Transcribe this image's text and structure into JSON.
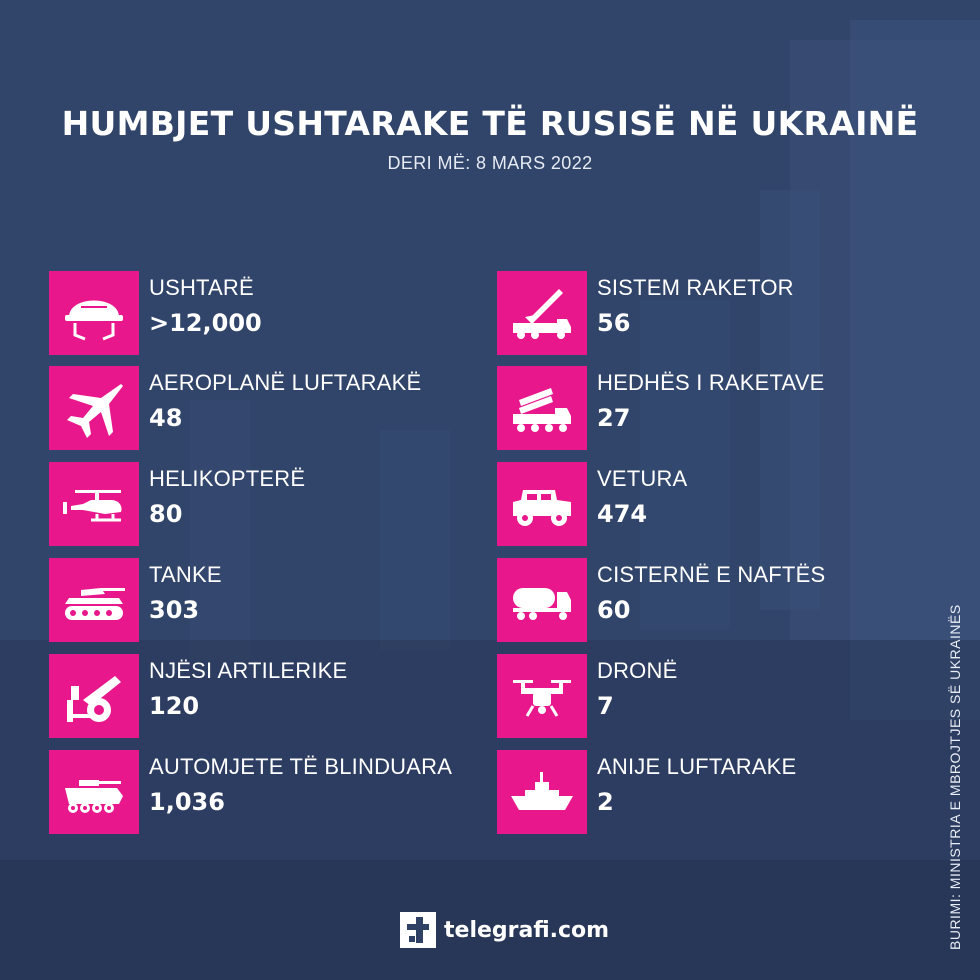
{
  "header": {
    "title": "HUMBJET USHTARAKE TË RUSISË NË UKRAINË",
    "subtitle": "DERI MË: 8 MARS 2022"
  },
  "left_items": [
    {
      "icon": "helmet-icon",
      "label": "USHTARË",
      "value": ">12,000"
    },
    {
      "icon": "fighter-jet-icon",
      "label": "AEROPLANË LUFTARAKË",
      "value": "48"
    },
    {
      "icon": "helicopter-icon",
      "label": "HELIKOPTERË",
      "value": "80"
    },
    {
      "icon": "tank-icon",
      "label": "TANKE",
      "value": "303"
    },
    {
      "icon": "artillery-icon",
      "label": "NJËSI ARTILERIKE",
      "value": "120"
    },
    {
      "icon": "armored-vehicle-icon",
      "label": "AUTOMJETE TË BLINDUARA",
      "value": "1,036"
    }
  ],
  "right_items": [
    {
      "icon": "missile-system-icon",
      "label": "SISTEM RAKETOR",
      "value": "56"
    },
    {
      "icon": "rocket-launcher-icon",
      "label": "HEDHËS I RAKETAVE",
      "value": "27"
    },
    {
      "icon": "jeep-icon",
      "label": "VETURA",
      "value": "474"
    },
    {
      "icon": "fuel-tanker-icon",
      "label": "CISTERNË E NAFTËS",
      "value": "60"
    },
    {
      "icon": "drone-icon",
      "label": "DRONË",
      "value": "7"
    },
    {
      "icon": "warship-icon",
      "label": "ANIJE LUFTARAKE",
      "value": "2"
    }
  ],
  "source": "BURIMI: MINISTRIA E MBROJTJES SË UKRAINËS",
  "logo": {
    "text": "telegrafi.com",
    "icon": "telegrafi-logo-icon"
  },
  "colors": {
    "tile": "#e8188c",
    "background": "#2f4265",
    "text": "#ffffff"
  }
}
